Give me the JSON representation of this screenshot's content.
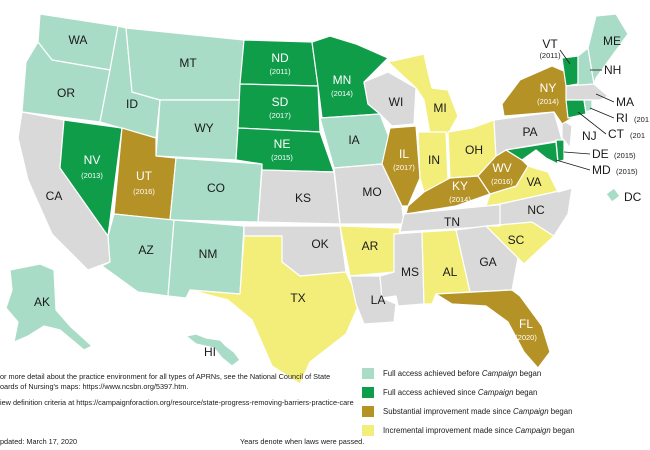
{
  "legend": {
    "full_before": {
      "label": "Full access achieved before ",
      "campaign": "Campaign",
      "tail": " began",
      "color": "#a8dcc6"
    },
    "full_since": {
      "label": "Full access achieved since ",
      "campaign": "Campaign",
      "tail": " began",
      "color": "#0f9d4a"
    },
    "substantial": {
      "label": "Substantial improvement made since ",
      "campaign": "Campaign",
      "tail": " began",
      "color": "#b59226"
    },
    "incremental": {
      "label": "Incremental improvement made since ",
      "campaign": "Campaign",
      "tail": " began",
      "color": "#f3ee7a"
    },
    "none": {
      "color": "#d9d9d9"
    }
  },
  "notes": {
    "line1": "or more detail about the practice environment for all types of APRNs, see the National Council of State",
    "line2": "oards of Nursing's maps: https://www.ncsbn.org/5397.htm.",
    "line3": "iew definition criteria at https://campaignforaction.org/resource/state-progress-removing-barriers-practice-care"
  },
  "updated": "pdated: March 17, 2020",
  "years_note": "Years denote when laws were passed.",
  "states": {
    "WA": {
      "label": "WA",
      "status": "full_before"
    },
    "OR": {
      "label": "OR",
      "status": "full_before"
    },
    "ID": {
      "label": "ID",
      "status": "full_before"
    },
    "MT": {
      "label": "MT",
      "status": "full_before"
    },
    "WY": {
      "label": "WY",
      "status": "full_before"
    },
    "CO": {
      "label": "CO",
      "status": "full_before"
    },
    "AZ": {
      "label": "AZ",
      "status": "full_before"
    },
    "NM": {
      "label": "NM",
      "status": "full_before"
    },
    "IA": {
      "label": "IA",
      "status": "full_before"
    },
    "AK": {
      "label": "AK",
      "status": "full_before"
    },
    "HI": {
      "label": "HI",
      "status": "full_before"
    },
    "ME": {
      "label": "ME",
      "status": "full_before"
    },
    "NH": {
      "label": "NH",
      "status": "full_before"
    },
    "RI": {
      "label": "RI",
      "status": "full_before",
      "year_partial": "(201"
    },
    "DC": {
      "label": "DC",
      "status": "full_before"
    },
    "ND": {
      "label": "ND",
      "year": "(2011)",
      "status": "full_since"
    },
    "SD": {
      "label": "SD",
      "year": "(2017)",
      "status": "full_since"
    },
    "NE": {
      "label": "NE",
      "year": "(2015)",
      "status": "full_since"
    },
    "MN": {
      "label": "MN",
      "year": "(2014)",
      "status": "full_since"
    },
    "NV": {
      "label": "NV",
      "year": "(2013)",
      "status": "full_since"
    },
    "VT": {
      "label": "VT",
      "year": "(2011)",
      "status": "full_since"
    },
    "CT": {
      "label": "CT",
      "status": "full_since",
      "year_partial": "(201"
    },
    "DE": {
      "label": "DE",
      "year": "(2015)",
      "status": "full_since"
    },
    "MD": {
      "label": "MD",
      "year": "(2015)",
      "status": "full_since"
    },
    "UT": {
      "label": "UT",
      "year": "(2016)",
      "status": "substantial"
    },
    "IL": {
      "label": "IL",
      "year": "(2017)",
      "status": "substantial"
    },
    "KY": {
      "label": "KY",
      "year": "(2014)",
      "status": "substantial"
    },
    "WV": {
      "label": "WV",
      "year": "(2016)",
      "status": "substantial"
    },
    "NY": {
      "label": "NY",
      "year": "(2014)",
      "status": "substantial"
    },
    "FL": {
      "label": "FL",
      "year": "(2020)",
      "status": "substantial"
    },
    "TX": {
      "label": "TX",
      "status": "incremental"
    },
    "AR": {
      "label": "AR",
      "status": "incremental"
    },
    "AL": {
      "label": "AL",
      "status": "incremental"
    },
    "IN": {
      "label": "IN",
      "status": "incremental"
    },
    "MI": {
      "label": "MI",
      "status": "incremental"
    },
    "OH": {
      "label": "OH",
      "status": "incremental"
    },
    "VA": {
      "label": "VA",
      "status": "incremental"
    },
    "SC": {
      "label": "SC",
      "status": "incremental"
    },
    "CA": {
      "label": "CA",
      "status": "none"
    },
    "KS": {
      "label": "KS",
      "status": "none"
    },
    "OK": {
      "label": "OK",
      "status": "none"
    },
    "MO": {
      "label": "MO",
      "status": "none"
    },
    "WI": {
      "label": "WI",
      "status": "none"
    },
    "LA": {
      "label": "LA",
      "status": "none"
    },
    "MS": {
      "label": "MS",
      "status": "none"
    },
    "TN": {
      "label": "TN",
      "status": "none"
    },
    "GA": {
      "label": "GA",
      "status": "none"
    },
    "NC": {
      "label": "NC",
      "status": "none"
    },
    "PA": {
      "label": "PA",
      "status": "none"
    },
    "NJ": {
      "label": "NJ",
      "status": "none"
    },
    "MA": {
      "label": "MA",
      "status": "none"
    }
  }
}
